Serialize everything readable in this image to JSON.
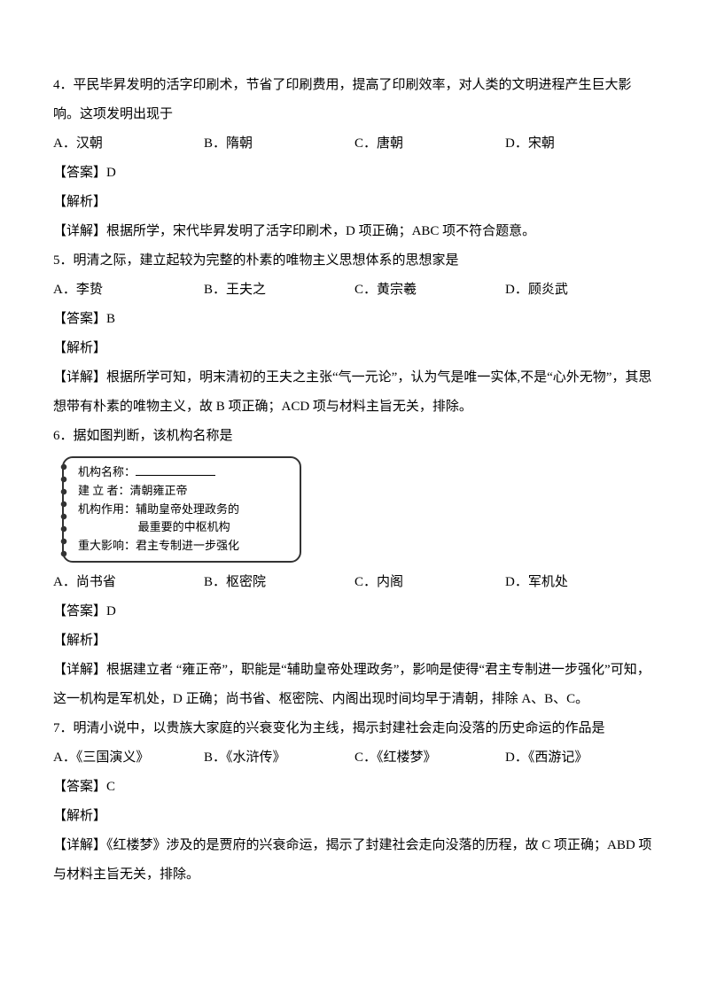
{
  "q4": {
    "text": "4．平民毕昇发明的活字印刷术，节省了印刷费用，提高了印刷效率，对人类的文明进程产生巨大影响。这项发明出现于",
    "opts": {
      "A": "A．汉朝",
      "B": "B．隋朝",
      "C": "C．唐朝",
      "D": "D．宋朝"
    },
    "ans": "【答案】D",
    "jx_label": "【解析】",
    "detail": "【详解】根据所学，宋代毕昇发明了活字印刷术，D 项正确；ABC 项不符合题意。"
  },
  "q5": {
    "text": "5．明清之际，建立起较为完整的朴素的唯物主义思想体系的思想家是",
    "opts": {
      "A": "A．李贽",
      "B": "B．王夫之",
      "C": "C．黄宗羲",
      "D": "D．顾炎武"
    },
    "ans": "【答案】B",
    "jx_label": "【解析】",
    "detail": "【详解】根据所学可知，明末清初的王夫之主张“气一元论”，认为气是唯一实体,不是“心外无物”，其思想带有朴素的唯物主义，故 B 项正确；ACD 项与材料主旨无关，排除。"
  },
  "q6": {
    "text": "6．据如图判断，该机构名称是",
    "card": {
      "l1_label": "机构名称：",
      "l2": "建 立 者：清朝雍正帝",
      "l3": "机构作用：辅助皇帝处理政务的",
      "l3b": "最重要的中枢机构",
      "l4": "重大影响：君主专制进一步强化"
    },
    "opts": {
      "A": "A．尚书省",
      "B": "B．枢密院",
      "C": "C．内阁",
      "D": "D．军机处"
    },
    "ans": "【答案】D",
    "jx_label": "【解析】",
    "detail": "【详解】根据建立者 “雍正帝”，职能是“辅助皇帝处理政务”，影响是使得“君主专制进一步强化”可知，这一机构是军机处，D 正确；尚书省、枢密院、内阁出现时间均早于清朝，排除 A、B、C。"
  },
  "q7": {
    "text": "7．明清小说中，以贵族大家庭的兴衰变化为主线，揭示封建社会走向没落的历史命运的作品是",
    "opts": {
      "A": "A．《三国演义》",
      "B": "B．《水浒传》",
      "C": "C．《红楼梦》",
      "D": "D．《西游记》"
    },
    "ans": "【答案】C",
    "jx_label": "【解析】",
    "detail": "【详解】《红楼梦》涉及的是贾府的兴衰命运，揭示了封建社会走向没落的历程，故 C 项正确；ABD 项与材料主旨无关，排除。"
  }
}
